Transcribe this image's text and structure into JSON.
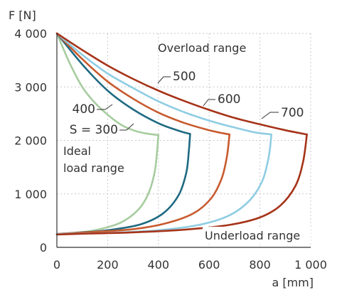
{
  "chart_data": {
    "type": "line",
    "xlabel": "a [mm]",
    "ylabel": "F [N]",
    "xlim": [
      0,
      1000
    ],
    "ylim": [
      0,
      4000
    ],
    "x_ticks": [
      0,
      200,
      400,
      600,
      800,
      1000
    ],
    "y_ticks": [
      0,
      1000,
      2000,
      3000,
      4000
    ],
    "x_tick_labels": [
      "0",
      "200",
      "400",
      "600",
      "800",
      "1 000"
    ],
    "y_tick_labels": [
      "0",
      "1 000",
      "2 000",
      "3 000",
      "4 000"
    ],
    "grid": true,
    "regions": [
      {
        "text": "Overload range"
      },
      {
        "text": "Underload range"
      },
      {
        "text": "Ideal"
      },
      {
        "text": "load range"
      }
    ],
    "series": [
      {
        "name": "S = 300",
        "color": "#a7cc9f",
        "upper": [
          [
            0,
            4000
          ],
          [
            50,
            3450
          ],
          [
            100,
            3000
          ],
          [
            150,
            2700
          ],
          [
            200,
            2480
          ],
          [
            250,
            2300
          ],
          [
            300,
            2190
          ],
          [
            350,
            2130
          ],
          [
            400,
            2100
          ]
        ],
        "lower": [
          [
            400,
            2100
          ],
          [
            395,
            1800
          ],
          [
            385,
            1400
          ],
          [
            360,
            1000
          ],
          [
            320,
            700
          ],
          [
            250,
            460
          ],
          [
            150,
            320
          ],
          [
            60,
            270
          ],
          [
            0,
            250
          ]
        ]
      },
      {
        "name": "400",
        "color": "#1f6a82",
        "upper": [
          [
            0,
            4000
          ],
          [
            100,
            3420
          ],
          [
            200,
            2930
          ],
          [
            300,
            2580
          ],
          [
            400,
            2320
          ],
          [
            480,
            2180
          ],
          [
            525,
            2120
          ]
        ],
        "lower": [
          [
            525,
            2120
          ],
          [
            520,
            1800
          ],
          [
            510,
            1400
          ],
          [
            480,
            980
          ],
          [
            420,
            640
          ],
          [
            330,
            430
          ],
          [
            200,
            320
          ],
          [
            100,
            280
          ],
          [
            0,
            250
          ]
        ]
      },
      {
        "name": "500",
        "color": "#c85a2e",
        "upper": [
          [
            0,
            4000
          ],
          [
            100,
            3520
          ],
          [
            200,
            3100
          ],
          [
            300,
            2780
          ],
          [
            400,
            2520
          ],
          [
            500,
            2330
          ],
          [
            600,
            2190
          ],
          [
            680,
            2110
          ]
        ],
        "lower": [
          [
            680,
            2110
          ],
          [
            670,
            1700
          ],
          [
            650,
            1300
          ],
          [
            610,
            930
          ],
          [
            540,
            640
          ],
          [
            430,
            450
          ],
          [
            300,
            340
          ],
          [
            150,
            290
          ],
          [
            0,
            250
          ]
        ]
      },
      {
        "name": "600",
        "color": "#8fcde3",
        "upper": [
          [
            0,
            4000
          ],
          [
            100,
            3600
          ],
          [
            200,
            3250
          ],
          [
            300,
            2980
          ],
          [
            400,
            2730
          ],
          [
            500,
            2530
          ],
          [
            600,
            2370
          ],
          [
            700,
            2240
          ],
          [
            780,
            2150
          ],
          [
            845,
            2110
          ]
        ],
        "lower": [
          [
            845,
            2110
          ],
          [
            835,
            1700
          ],
          [
            810,
            1250
          ],
          [
            760,
            880
          ],
          [
            680,
            600
          ],
          [
            560,
            420
          ],
          [
            400,
            320
          ],
          [
            200,
            270
          ],
          [
            0,
            250
          ]
        ]
      },
      {
        "name": "700",
        "color": "#a63318",
        "upper": [
          [
            0,
            4000
          ],
          [
            100,
            3690
          ],
          [
            200,
            3400
          ],
          [
            300,
            3150
          ],
          [
            400,
            2930
          ],
          [
            500,
            2740
          ],
          [
            600,
            2570
          ],
          [
            700,
            2420
          ],
          [
            800,
            2300
          ],
          [
            900,
            2190
          ],
          [
            985,
            2110
          ]
        ],
        "lower": [
          [
            985,
            2110
          ],
          [
            970,
            1600
          ],
          [
            940,
            1150
          ],
          [
            880,
            780
          ],
          [
            800,
            560
          ],
          [
            680,
            420
          ],
          [
            500,
            330
          ],
          [
            300,
            280
          ],
          [
            100,
            255
          ],
          [
            0,
            240
          ]
        ]
      }
    ]
  }
}
